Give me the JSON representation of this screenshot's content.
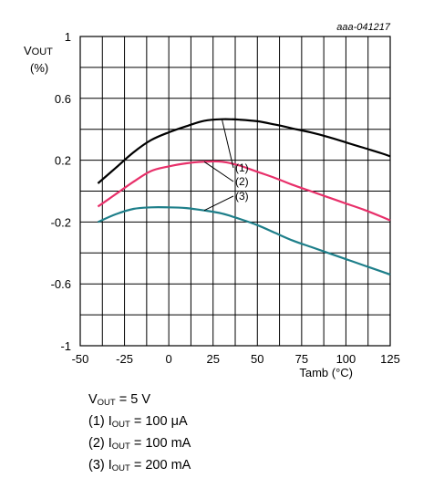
{
  "chart_data": {
    "type": "line",
    "identifier": "aaa-041217",
    "ylabel_main": "V",
    "ylabel_sub": "OUT",
    "ylabel_unit": "(%)",
    "xlabel": "Tamb (°C)",
    "xlim": [
      -50,
      125
    ],
    "ylim": [
      -1,
      1
    ],
    "x_ticks": [
      "-50",
      "-25",
      "0",
      "25",
      "50",
      "75",
      "100",
      "125"
    ],
    "y_ticks": [
      "1",
      "0.6",
      "0.2",
      "-0.2",
      "-0.6",
      "-1"
    ],
    "grid": true,
    "series": [
      {
        "name": "(1)",
        "color": "#000000",
        "x": [
          -40,
          -30,
          -20,
          -10,
          0,
          10,
          20,
          30,
          40,
          50,
          60,
          70,
          80,
          90,
          100,
          110,
          120,
          125
        ],
        "y": [
          0.05,
          0.15,
          0.25,
          0.33,
          0.38,
          0.42,
          0.455,
          0.465,
          0.462,
          0.452,
          0.43,
          0.405,
          0.38,
          0.35,
          0.315,
          0.28,
          0.245,
          0.225
        ]
      },
      {
        "name": "(2)",
        "color": "#e8306a",
        "x": [
          -40,
          -30,
          -20,
          -10,
          0,
          10,
          20,
          30,
          40,
          50,
          60,
          70,
          80,
          90,
          100,
          110,
          120,
          125
        ],
        "y": [
          -0.1,
          -0.02,
          0.06,
          0.13,
          0.16,
          0.18,
          0.19,
          0.19,
          0.165,
          0.125,
          0.085,
          0.04,
          0.0,
          -0.04,
          -0.08,
          -0.12,
          -0.165,
          -0.19
        ]
      },
      {
        "name": "(3)",
        "color": "#1e7f8a",
        "x": [
          -40,
          -30,
          -20,
          -10,
          0,
          10,
          20,
          30,
          40,
          50,
          60,
          70,
          80,
          90,
          100,
          110,
          120,
          125
        ],
        "y": [
          -0.2,
          -0.15,
          -0.115,
          -0.105,
          -0.105,
          -0.11,
          -0.125,
          -0.145,
          -0.18,
          -0.22,
          -0.27,
          -0.32,
          -0.36,
          -0.4,
          -0.44,
          -0.48,
          -0.52,
          -0.54
        ]
      }
    ]
  },
  "notes": [
    {
      "prefix": "V",
      "sub": "OUT",
      "suffix": " = 5 V"
    },
    {
      "prefix": "(1) I",
      "sub": "OUT",
      "suffix": " = 100 μA"
    },
    {
      "prefix": "(2) I",
      "sub": "OUT",
      "suffix": " = 100 mA"
    },
    {
      "prefix": "(3) I",
      "sub": "OUT",
      "suffix": " = 200 mA"
    }
  ]
}
